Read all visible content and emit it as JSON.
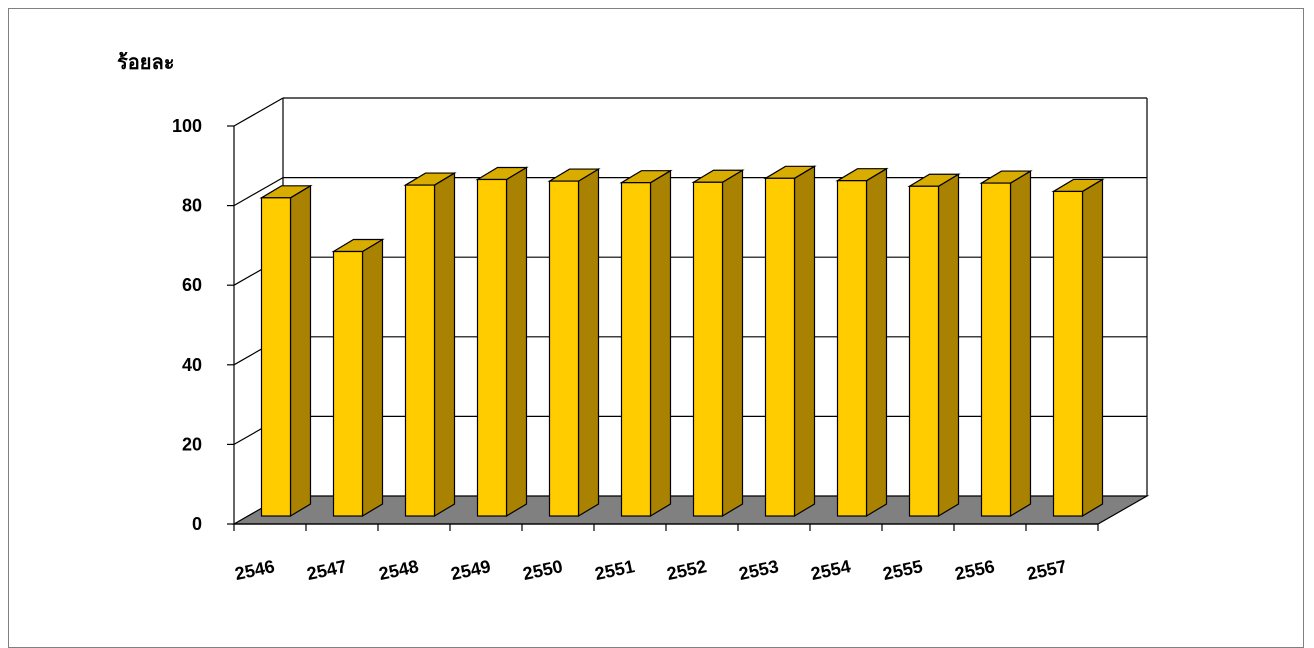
{
  "chart_data": {
    "type": "bar",
    "title": "",
    "xlabel": "",
    "ylabel": "ร้อยละ",
    "ylim": [
      0,
      100
    ],
    "yticks": [
      "0",
      "20",
      "40",
      "60",
      "80",
      "100"
    ],
    "categories": [
      "2546",
      "2547",
      "2548",
      "2549",
      "2550",
      "2551",
      "2552",
      "2553",
      "2554",
      "2555",
      "2556",
      "2557"
    ],
    "values": [
      90.0,
      76.5,
      93.2,
      94.6,
      94.2,
      93.8,
      93.9,
      94.9,
      94.3,
      92.9,
      93.7,
      91.6
    ],
    "grid": true,
    "style": "3d-column",
    "colors": {
      "bar_front": "#FFCC00",
      "bar_top": "#D9AC00",
      "bar_side": "#A88200",
      "floor": "#808080"
    }
  }
}
